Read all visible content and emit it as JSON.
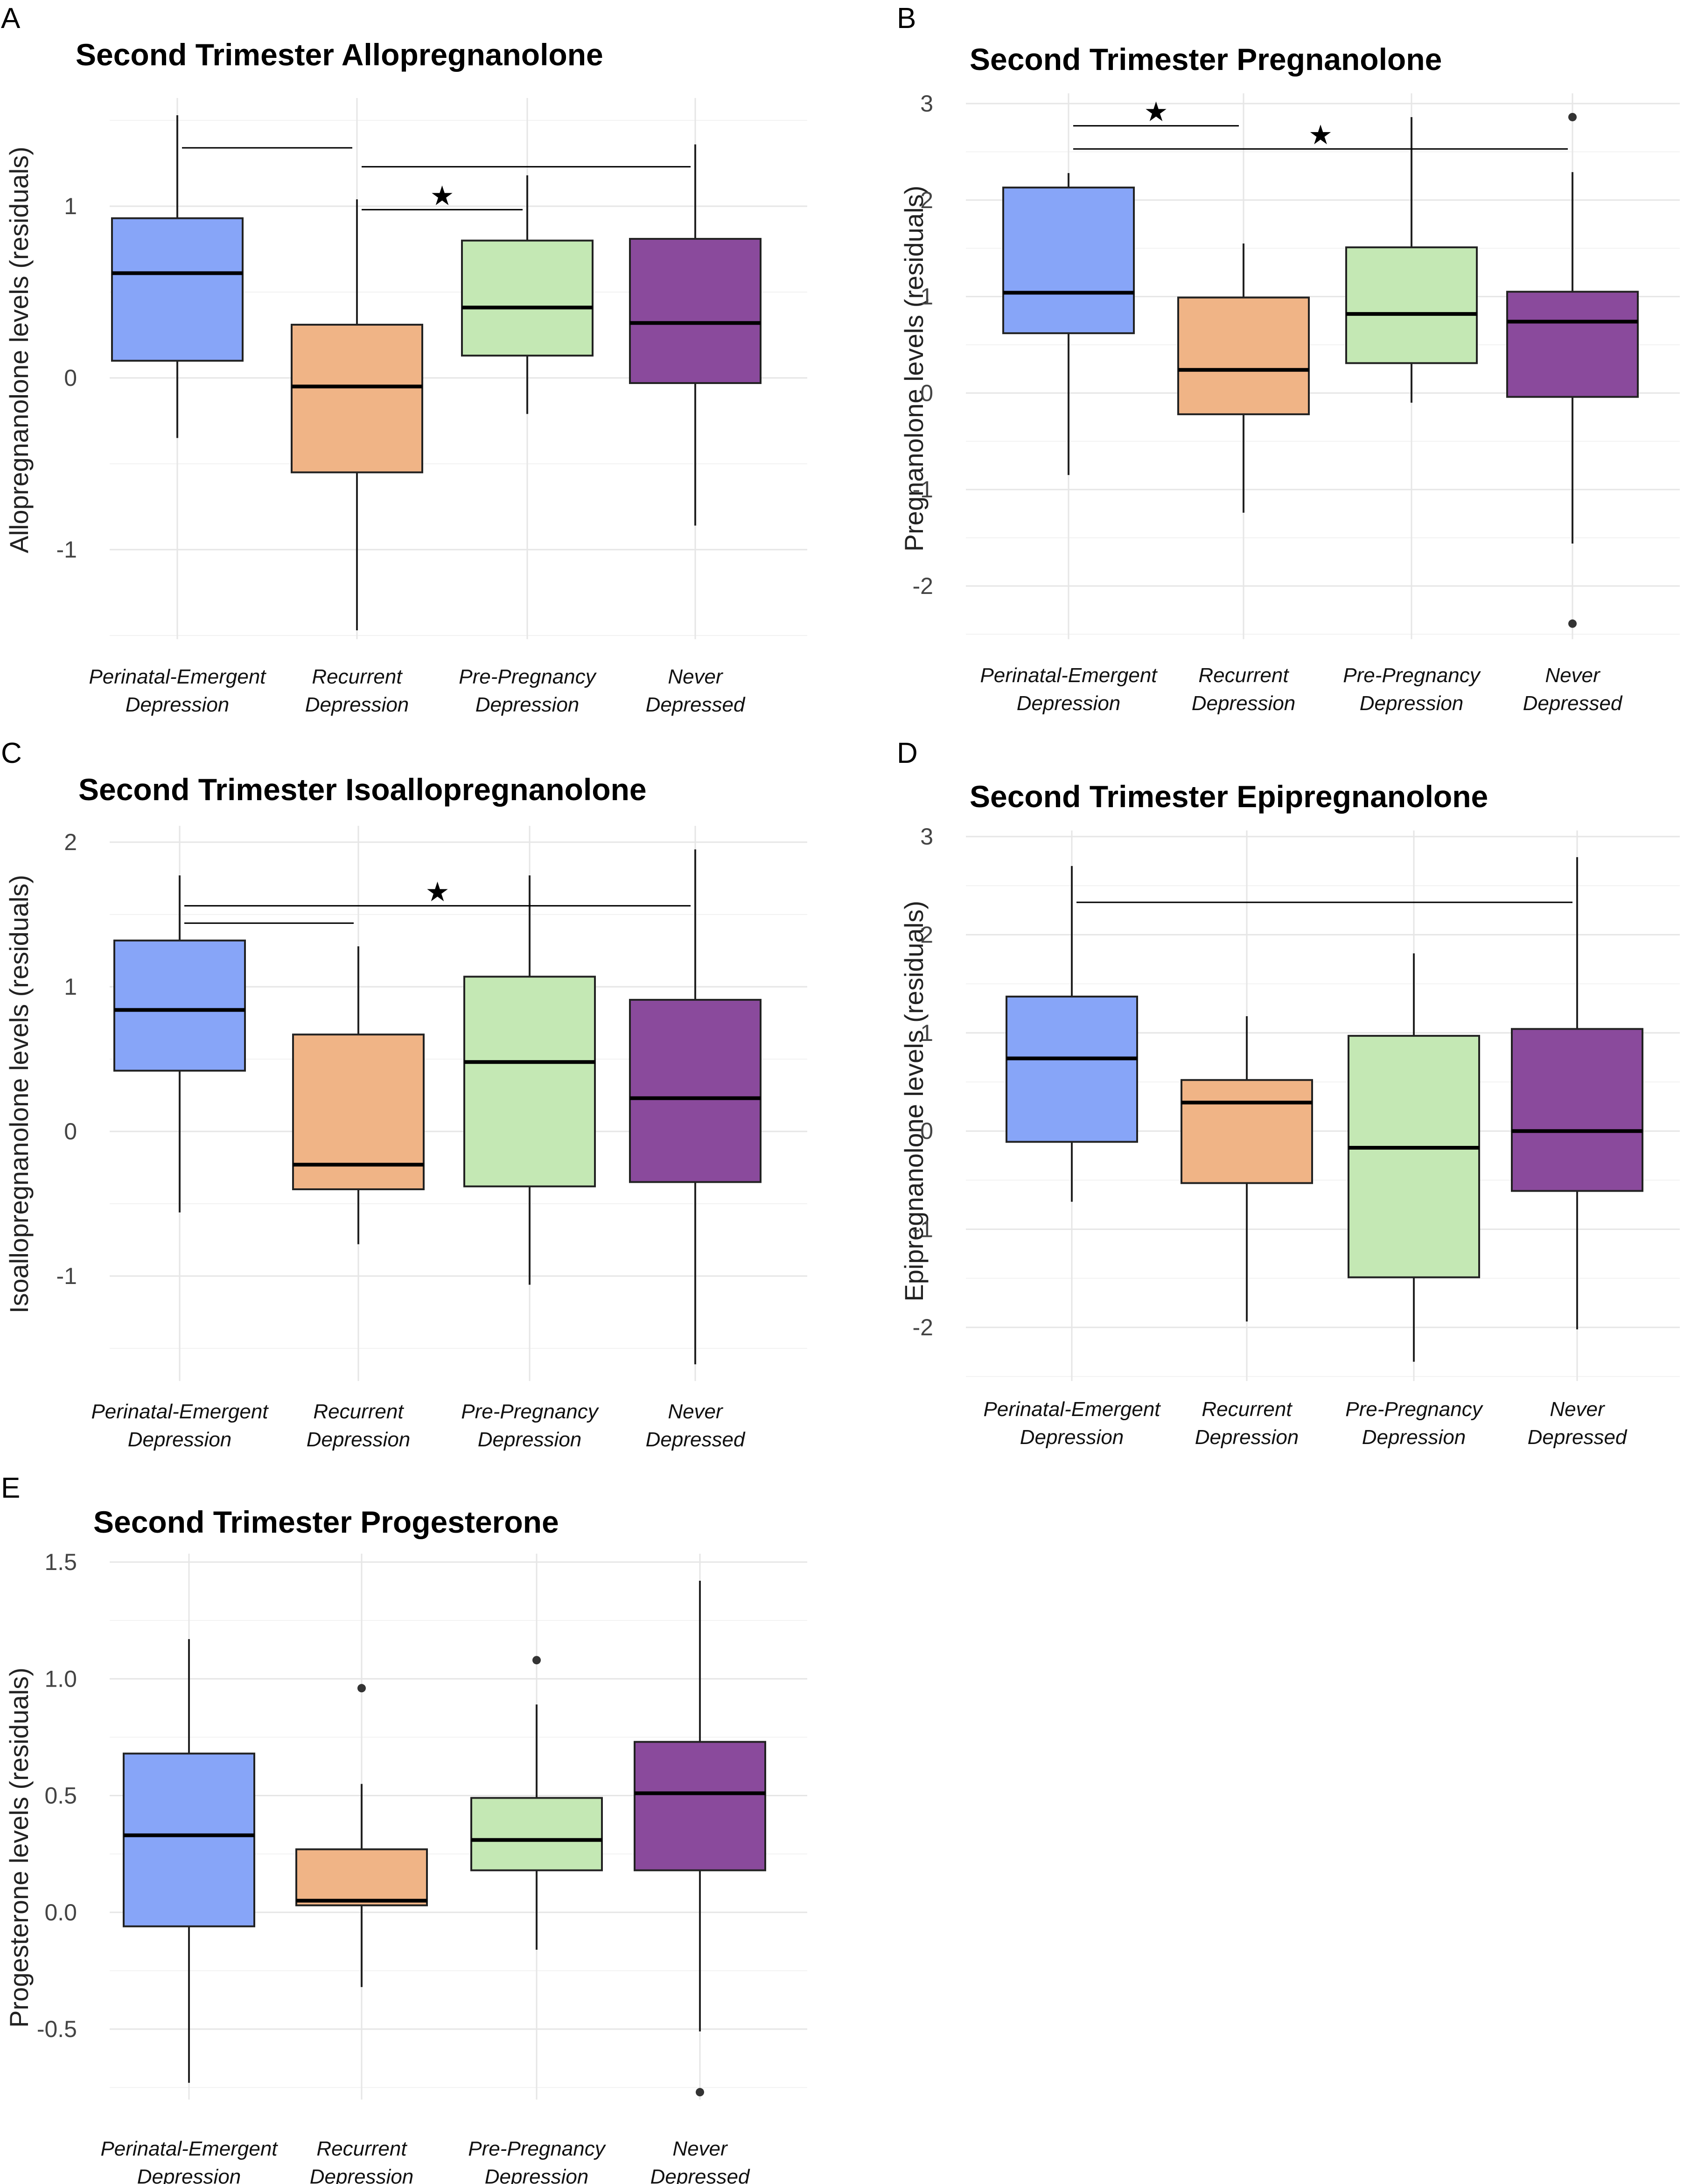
{
  "chart_data": [
    {
      "panel": "A",
      "type": "boxplot",
      "title": "Second Trimester Allopregnanolone",
      "xlabel": "",
      "ylabel": "Allopregnanolone levels (residuals)",
      "ylim": [
        -1.6,
        1.6
      ],
      "yticks": [
        "-1",
        "0",
        "1"
      ],
      "categories": [
        "Perinatal-Emergent\nDepression",
        "Recurrent\nDepression",
        "Pre-Pregnancy\nDepression",
        "Never\nDepressed"
      ],
      "boxes": [
        {
          "lower": -0.35,
          "q1": 0.1,
          "median": 0.61,
          "q3": 0.93,
          "upper": 1.53,
          "color": "#87a5f8",
          "outliers": []
        },
        {
          "lower": -1.47,
          "q1": -0.55,
          "median": -0.05,
          "q3": 0.31,
          "upper": 1.04,
          "color": "#f0b486",
          "outliers": []
        },
        {
          "lower": -0.21,
          "q1": 0.13,
          "median": 0.41,
          "q3": 0.8,
          "upper": 1.18,
          "color": "#c4e8b4",
          "outliers": []
        },
        {
          "lower": -0.86,
          "q1": -0.03,
          "median": 0.32,
          "q3": 0.81,
          "upper": 1.36,
          "color": "#8a4a9c",
          "outliers": []
        }
      ],
      "comparisons": [
        {
          "from": 0,
          "to": 1,
          "y": 1.34,
          "label": ""
        },
        {
          "from": 1,
          "to": 3,
          "y": 1.23,
          "label": ""
        },
        {
          "from": 1,
          "to": 2,
          "y": 0.98,
          "label": "★"
        }
      ]
    },
    {
      "panel": "B",
      "type": "boxplot",
      "title": "Second Trimester Pregnanolone",
      "xlabel": "",
      "ylabel": "Pregnanolone levels (residuals)",
      "ylim": [
        -2.6,
        3.15
      ],
      "yticks": [
        "-2",
        "-1",
        "0",
        "1",
        "2",
        "3"
      ],
      "categories": [
        "Perinatal-Emergent\nDepression",
        "Recurrent\nDepression",
        "Pre-Pregnancy\nDepression",
        "Never\nDepressed"
      ],
      "boxes": [
        {
          "lower": -0.85,
          "q1": 0.62,
          "median": 1.04,
          "q3": 2.13,
          "upper": 2.28,
          "color": "#87a5f8",
          "outliers": []
        },
        {
          "lower": -1.24,
          "q1": -0.22,
          "median": 0.24,
          "q3": 0.99,
          "upper": 1.55,
          "color": "#f0b486",
          "outliers": []
        },
        {
          "lower": -0.1,
          "q1": 0.31,
          "median": 0.82,
          "q3": 1.51,
          "upper": 2.86,
          "color": "#c4e8b4",
          "outliers": []
        },
        {
          "lower": -1.56,
          "q1": -0.04,
          "median": 0.74,
          "q3": 1.05,
          "upper": 2.29,
          "color": "#8a4a9c",
          "outliers": [
            2.86,
            -2.39
          ]
        }
      ],
      "comparisons": [
        {
          "from": 0,
          "to": 1,
          "y": 2.77,
          "label": "★"
        },
        {
          "from": 0,
          "to": 3,
          "y": 2.53,
          "label": "★"
        }
      ]
    },
    {
      "panel": "C",
      "type": "boxplot",
      "title": "Second Trimester Isoallopregnanolone",
      "xlabel": "",
      "ylabel": "Isoallopregnanolone levels (residuals)",
      "ylim": [
        -1.7,
        2.1
      ],
      "yticks": [
        "-1",
        "0",
        "1",
        "2"
      ],
      "categories": [
        "Perinatal-Emergent\nDepression",
        "Recurrent\nDepression",
        "Pre-Pregnancy\nDepression",
        "Never\nDepressed"
      ],
      "boxes": [
        {
          "lower": -0.56,
          "q1": 0.42,
          "median": 0.84,
          "q3": 1.32,
          "upper": 1.77,
          "color": "#87a5f8",
          "outliers": []
        },
        {
          "lower": -0.78,
          "q1": -0.4,
          "median": -0.23,
          "q3": 0.67,
          "upper": 1.28,
          "color": "#f0b486",
          "outliers": []
        },
        {
          "lower": -1.06,
          "q1": -0.38,
          "median": 0.48,
          "q3": 1.07,
          "upper": 1.77,
          "color": "#c4e8b4",
          "outliers": []
        },
        {
          "lower": -1.61,
          "q1": -0.35,
          "median": 0.23,
          "q3": 0.91,
          "upper": 1.95,
          "color": "#8a4a9c",
          "outliers": []
        }
      ],
      "comparisons": [
        {
          "from": 0,
          "to": 3,
          "y": 1.56,
          "label": "★"
        },
        {
          "from": 0,
          "to": 1,
          "y": 1.44,
          "label": ""
        }
      ]
    },
    {
      "panel": "D",
      "type": "boxplot",
      "title": "Second Trimester Epipregnanolone",
      "xlabel": "",
      "ylabel": "Epipregnanolone levels (residuals)",
      "ylim": [
        -2.5,
        3.05
      ],
      "yticks": [
        "-2",
        "-1",
        "0",
        "1",
        "2",
        "3"
      ],
      "categories": [
        "Perinatal-Emergent\nDepression",
        "Recurrent\nDepression",
        "Pre-Pregnancy\nDepression",
        "Never\nDepressed"
      ],
      "boxes": [
        {
          "lower": -0.72,
          "q1": -0.11,
          "median": 0.74,
          "q3": 1.37,
          "upper": 2.7,
          "color": "#87a5f8",
          "outliers": []
        },
        {
          "lower": -1.94,
          "q1": -0.53,
          "median": 0.29,
          "q3": 0.52,
          "upper": 1.17,
          "color": "#f0b486",
          "outliers": []
        },
        {
          "lower": -2.35,
          "q1": -1.49,
          "median": -0.17,
          "q3": 0.97,
          "upper": 1.81,
          "color": "#c4e8b4",
          "outliers": []
        },
        {
          "lower": -2.02,
          "q1": -0.61,
          "median": 0.0,
          "q3": 1.04,
          "upper": 2.79,
          "color": "#8a4a9c",
          "outliers": []
        }
      ],
      "comparisons": [
        {
          "from": 0,
          "to": 3,
          "y": 2.33,
          "label": ""
        }
      ]
    },
    {
      "panel": "E",
      "type": "boxplot",
      "title": "Second Trimester Progesterone",
      "xlabel": "",
      "ylabel": "Progesterone levels (residuals)",
      "ylim": [
        -0.75,
        1.5
      ],
      "yticks": [
        "-0.5",
        "0.0",
        "0.5",
        "1.0",
        "1.5"
      ],
      "categories": [
        "Perinatal-Emergent\nDepression",
        "Recurrent\nDepression",
        "Pre-Pregnancy\nDepression",
        "Never\nDepressed"
      ],
      "boxes": [
        {
          "lower": -0.73,
          "q1": -0.06,
          "median": 0.33,
          "q3": 0.68,
          "upper": 1.17,
          "color": "#87a5f8",
          "outliers": []
        },
        {
          "lower": -0.32,
          "q1": 0.03,
          "median": 0.05,
          "q3": 0.27,
          "upper": 0.55,
          "color": "#f0b486",
          "outliers": [
            0.96
          ]
        },
        {
          "lower": -0.16,
          "q1": 0.18,
          "median": 0.31,
          "q3": 0.49,
          "upper": 0.89,
          "color": "#c4e8b4",
          "outliers": [
            1.08
          ]
        },
        {
          "lower": -0.51,
          "q1": 0.18,
          "median": 0.51,
          "q3": 0.73,
          "upper": 1.42,
          "color": "#8a4a9c",
          "outliers": [
            -0.77
          ]
        }
      ],
      "comparisons": []
    }
  ]
}
